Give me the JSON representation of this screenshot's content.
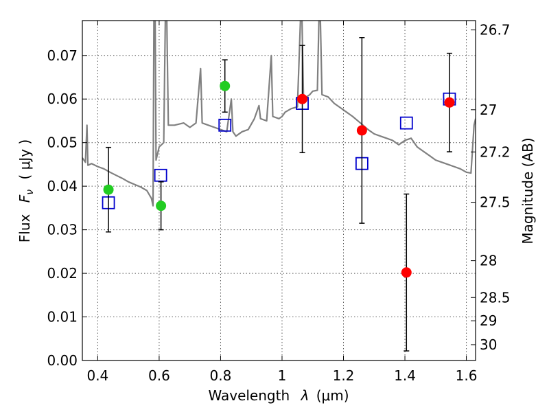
{
  "chart_data": {
    "type": "scatter",
    "title": "",
    "xlabel": {
      "prefix": "Wavelength",
      "symbol": "λ",
      "unit": "(μm)"
    },
    "ylabel": {
      "prefix": "Flux",
      "symbol": "F",
      "subscript": "ν",
      "unit": "( μJy )"
    },
    "y2label": "Magnitude (AB)",
    "xlim": [
      0.35,
      1.63
    ],
    "ylim": [
      0.0,
      0.078
    ],
    "grid": true,
    "xticks": [
      {
        "value": 0.4,
        "label": "0.4"
      },
      {
        "value": 0.6,
        "label": "0.6"
      },
      {
        "value": 0.8,
        "label": "0.8"
      },
      {
        "value": 1.0,
        "label": "1"
      },
      {
        "value": 1.2,
        "label": "1.2"
      },
      {
        "value": 1.4,
        "label": "1.4"
      },
      {
        "value": 1.6,
        "label": "1.6"
      }
    ],
    "yticks": [
      {
        "value": 0.0,
        "label": "0.00"
      },
      {
        "value": 0.01,
        "label": "0.01"
      },
      {
        "value": 0.02,
        "label": "0.02"
      },
      {
        "value": 0.03,
        "label": "0.03"
      },
      {
        "value": 0.04,
        "label": "0.04"
      },
      {
        "value": 0.05,
        "label": "0.05"
      },
      {
        "value": 0.06,
        "label": "0.06"
      },
      {
        "value": 0.07,
        "label": "0.07"
      }
    ],
    "y2ticks": [
      {
        "mag": 26.7,
        "label": "26.7"
      },
      {
        "mag": 27.0,
        "label": "27"
      },
      {
        "mag": 27.2,
        "label": "27.2"
      },
      {
        "mag": 27.5,
        "label": "27.5"
      },
      {
        "mag": 28.0,
        "label": "28"
      },
      {
        "mag": 28.5,
        "label": "28.5"
      },
      {
        "mag": 29.0,
        "label": "29"
      },
      {
        "mag": 30.0,
        "label": "30"
      }
    ],
    "colors": {
      "spectrum": "#808080",
      "model": "#0000cc",
      "optical": "#22cc22",
      "nir": "#ff0000",
      "errorbar": "#000000",
      "grid": "#555555"
    },
    "series": [
      {
        "kind": "line",
        "color_key": "spectrum",
        "points": [
          [
            0.35,
            0.0465
          ],
          [
            0.36,
            0.0455
          ],
          [
            0.365,
            0.054
          ],
          [
            0.368,
            0.0448
          ],
          [
            0.38,
            0.0452
          ],
          [
            0.4,
            0.0445
          ],
          [
            0.42,
            0.044
          ],
          [
            0.44,
            0.0432
          ],
          [
            0.46,
            0.0425
          ],
          [
            0.48,
            0.0418
          ],
          [
            0.5,
            0.041
          ],
          [
            0.52,
            0.0404
          ],
          [
            0.54,
            0.0398
          ],
          [
            0.56,
            0.039
          ],
          [
            0.575,
            0.0372
          ],
          [
            0.58,
            0.0355
          ],
          [
            0.583,
            0.078
          ],
          [
            0.587,
            0.078
          ],
          [
            0.59,
            0.046
          ],
          [
            0.6,
            0.049
          ],
          [
            0.615,
            0.05
          ],
          [
            0.62,
            0.078
          ],
          [
            0.625,
            0.078
          ],
          [
            0.63,
            0.054
          ],
          [
            0.65,
            0.054
          ],
          [
            0.68,
            0.0545
          ],
          [
            0.7,
            0.0535
          ],
          [
            0.72,
            0.0545
          ],
          [
            0.735,
            0.067
          ],
          [
            0.74,
            0.0545
          ],
          [
            0.76,
            0.054
          ],
          [
            0.78,
            0.0535
          ],
          [
            0.8,
            0.053
          ],
          [
            0.82,
            0.0525
          ],
          [
            0.835,
            0.06
          ],
          [
            0.84,
            0.0525
          ],
          [
            0.85,
            0.0515
          ],
          [
            0.87,
            0.0525
          ],
          [
            0.89,
            0.053
          ],
          [
            0.91,
            0.0555
          ],
          [
            0.925,
            0.0585
          ],
          [
            0.93,
            0.0555
          ],
          [
            0.95,
            0.055
          ],
          [
            0.965,
            0.07
          ],
          [
            0.97,
            0.056
          ],
          [
            0.99,
            0.0555
          ],
          [
            1.0,
            0.056
          ],
          [
            1.01,
            0.057
          ],
          [
            1.03,
            0.0578
          ],
          [
            1.05,
            0.0582
          ],
          [
            1.06,
            0.078
          ],
          [
            1.065,
            0.078
          ],
          [
            1.07,
            0.06
          ],
          [
            1.09,
            0.061
          ],
          [
            1.1,
            0.0618
          ],
          [
            1.115,
            0.062
          ],
          [
            1.12,
            0.078
          ],
          [
            1.125,
            0.078
          ],
          [
            1.13,
            0.061
          ],
          [
            1.15,
            0.0605
          ],
          [
            1.17,
            0.059
          ],
          [
            1.19,
            0.058
          ],
          [
            1.21,
            0.057
          ],
          [
            1.23,
            0.056
          ],
          [
            1.25,
            0.0548
          ],
          [
            1.28,
            0.053
          ],
          [
            1.3,
            0.052
          ],
          [
            1.32,
            0.0515
          ],
          [
            1.34,
            0.051
          ],
          [
            1.36,
            0.0505
          ],
          [
            1.38,
            0.0495
          ],
          [
            1.4,
            0.0505
          ],
          [
            1.42,
            0.051
          ],
          [
            1.44,
            0.049
          ],
          [
            1.46,
            0.048
          ],
          [
            1.48,
            0.047
          ],
          [
            1.5,
            0.046
          ],
          [
            1.52,
            0.0455
          ],
          [
            1.54,
            0.045
          ],
          [
            1.56,
            0.0445
          ],
          [
            1.58,
            0.044
          ],
          [
            1.6,
            0.0432
          ],
          [
            1.615,
            0.043
          ],
          [
            1.625,
            0.054
          ],
          [
            1.63,
            0.0555
          ]
        ]
      },
      {
        "kind": "squares",
        "color_key": "model",
        "points": [
          {
            "x": 0.435,
            "y": 0.0362
          },
          {
            "x": 0.605,
            "y": 0.0425
          },
          {
            "x": 0.814,
            "y": 0.054
          },
          {
            "x": 1.066,
            "y": 0.059
          },
          {
            "x": 1.26,
            "y": 0.0452
          },
          {
            "x": 1.405,
            "y": 0.0545
          },
          {
            "x": 1.545,
            "y": 0.06
          }
        ]
      },
      {
        "kind": "points",
        "color_key": "optical",
        "points": [
          {
            "x": 0.435,
            "y": 0.0392,
            "yerr": 0.0097
          },
          {
            "x": 0.606,
            "y": 0.0355,
            "yerr": 0.0055
          },
          {
            "x": 0.814,
            "y": 0.063,
            "yerr": 0.006
          }
        ]
      },
      {
        "kind": "points",
        "color_key": "nir",
        "points": [
          {
            "x": 1.066,
            "y": 0.06,
            "yerr": 0.0123
          },
          {
            "x": 1.26,
            "y": 0.0528,
            "yerr": 0.0213
          },
          {
            "x": 1.405,
            "y": 0.0202,
            "yerr": 0.018
          },
          {
            "x": 1.545,
            "y": 0.0592,
            "yerr": 0.0113
          }
        ]
      }
    ]
  }
}
